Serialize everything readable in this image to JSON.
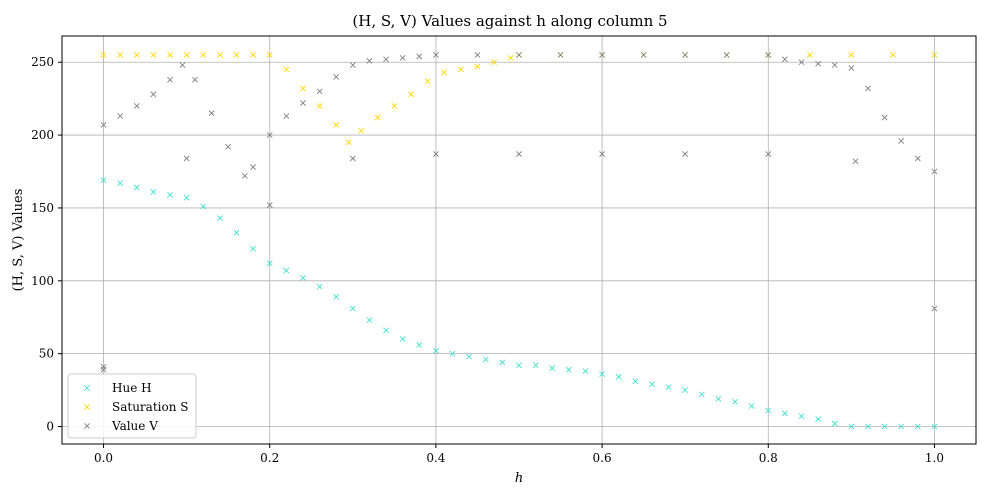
{
  "chart_data": {
    "type": "scatter",
    "title": "(H, S, V) Values against h along column 5",
    "xlabel": "h",
    "ylabel": "(H, S, V) Values",
    "xlim": [
      -0.05,
      1.05
    ],
    "ylim": [
      -12,
      268
    ],
    "xticks": [
      0.0,
      0.2,
      0.4,
      0.6,
      0.8,
      1.0
    ],
    "xtick_labels": [
      "0.0",
      "0.2",
      "0.4",
      "0.6",
      "0.8",
      "1.0"
    ],
    "yticks": [
      0,
      50,
      100,
      150,
      200,
      250
    ],
    "ytick_labels": [
      "0",
      "50",
      "100",
      "150",
      "200",
      "250"
    ],
    "grid": true,
    "legend_position": "bottom-left",
    "marker": "x",
    "series": [
      {
        "name": "Hue H",
        "color": "#40e0d0",
        "points": [
          [
            0.0,
            169
          ],
          [
            0.02,
            167
          ],
          [
            0.04,
            164
          ],
          [
            0.06,
            161
          ],
          [
            0.08,
            159
          ],
          [
            0.1,
            157
          ],
          [
            0.12,
            151
          ],
          [
            0.14,
            143
          ],
          [
            0.16,
            133
          ],
          [
            0.18,
            122
          ],
          [
            0.2,
            112
          ],
          [
            0.22,
            107
          ],
          [
            0.24,
            102
          ],
          [
            0.26,
            96
          ],
          [
            0.28,
            89
          ],
          [
            0.3,
            81
          ],
          [
            0.32,
            73
          ],
          [
            0.34,
            66
          ],
          [
            0.36,
            60
          ],
          [
            0.38,
            56
          ],
          [
            0.4,
            52
          ],
          [
            0.42,
            50
          ],
          [
            0.44,
            48
          ],
          [
            0.46,
            46
          ],
          [
            0.48,
            44
          ],
          [
            0.5,
            42
          ],
          [
            0.52,
            42
          ],
          [
            0.54,
            40
          ],
          [
            0.56,
            39
          ],
          [
            0.58,
            38
          ],
          [
            0.6,
            36
          ],
          [
            0.62,
            34
          ],
          [
            0.64,
            31
          ],
          [
            0.66,
            29
          ],
          [
            0.68,
            27
          ],
          [
            0.7,
            25
          ],
          [
            0.72,
            22
          ],
          [
            0.74,
            19
          ],
          [
            0.76,
            17
          ],
          [
            0.78,
            14
          ],
          [
            0.8,
            11
          ],
          [
            0.82,
            9
          ],
          [
            0.84,
            7
          ],
          [
            0.86,
            5
          ],
          [
            0.88,
            2
          ],
          [
            0.9,
            0
          ],
          [
            0.92,
            0
          ],
          [
            0.94,
            0
          ],
          [
            0.96,
            0
          ],
          [
            0.98,
            0
          ],
          [
            1.0,
            0
          ]
        ]
      },
      {
        "name": "Saturation S",
        "color": "#ffd700",
        "points": [
          [
            0.0,
            255
          ],
          [
            0.02,
            255
          ],
          [
            0.04,
            255
          ],
          [
            0.06,
            255
          ],
          [
            0.08,
            255
          ],
          [
            0.1,
            255
          ],
          [
            0.12,
            255
          ],
          [
            0.14,
            255
          ],
          [
            0.16,
            255
          ],
          [
            0.18,
            255
          ],
          [
            0.2,
            255
          ],
          [
            0.22,
            245
          ],
          [
            0.24,
            232
          ],
          [
            0.26,
            220
          ],
          [
            0.28,
            207
          ],
          [
            0.295,
            195
          ],
          [
            0.31,
            203
          ],
          [
            0.33,
            212
          ],
          [
            0.35,
            220
          ],
          [
            0.37,
            228
          ],
          [
            0.39,
            237
          ],
          [
            0.41,
            243
          ],
          [
            0.43,
            245
          ],
          [
            0.45,
            247
          ],
          [
            0.47,
            250
          ],
          [
            0.49,
            253
          ],
          [
            0.5,
            255
          ],
          [
            0.55,
            255
          ],
          [
            0.6,
            255
          ],
          [
            0.65,
            255
          ],
          [
            0.7,
            255
          ],
          [
            0.75,
            255
          ],
          [
            0.8,
            255
          ],
          [
            0.85,
            255
          ],
          [
            0.9,
            255
          ],
          [
            0.95,
            255
          ],
          [
            1.0,
            255
          ]
        ]
      },
      {
        "name": "Value V",
        "color": "#808080",
        "points": [
          [
            0.0,
            207
          ],
          [
            0.02,
            213
          ],
          [
            0.04,
            220
          ],
          [
            0.06,
            228
          ],
          [
            0.08,
            238
          ],
          [
            0.095,
            248
          ],
          [
            0.11,
            238
          ],
          [
            0.13,
            215
          ],
          [
            0.15,
            192
          ],
          [
            0.17,
            172
          ],
          [
            0.18,
            178
          ],
          [
            0.2,
            200
          ],
          [
            0.22,
            213
          ],
          [
            0.24,
            222
          ],
          [
            0.26,
            230
          ],
          [
            0.28,
            240
          ],
          [
            0.3,
            248
          ],
          [
            0.32,
            251
          ],
          [
            0.34,
            252
          ],
          [
            0.36,
            253
          ],
          [
            0.38,
            254
          ],
          [
            0.4,
            255
          ],
          [
            0.45,
            255
          ],
          [
            0.5,
            255
          ],
          [
            0.55,
            255
          ],
          [
            0.6,
            255
          ],
          [
            0.65,
            255
          ],
          [
            0.7,
            255
          ],
          [
            0.75,
            255
          ],
          [
            0.8,
            255
          ],
          [
            0.82,
            252
          ],
          [
            0.84,
            250
          ],
          [
            0.86,
            249
          ],
          [
            0.88,
            248
          ],
          [
            0.9,
            246
          ],
          [
            0.92,
            232
          ],
          [
            0.94,
            212
          ],
          [
            0.96,
            196
          ],
          [
            0.98,
            184
          ],
          [
            1.0,
            175
          ],
          [
            0.0,
            41
          ],
          [
            0.0,
            39
          ],
          [
            0.1,
            184
          ],
          [
            0.2,
            152
          ],
          [
            0.3,
            184
          ],
          [
            0.4,
            187
          ],
          [
            0.5,
            187
          ],
          [
            0.6,
            187
          ],
          [
            0.7,
            187
          ],
          [
            0.8,
            187
          ],
          [
            0.905,
            182
          ],
          [
            1.0,
            81
          ]
        ]
      }
    ]
  }
}
